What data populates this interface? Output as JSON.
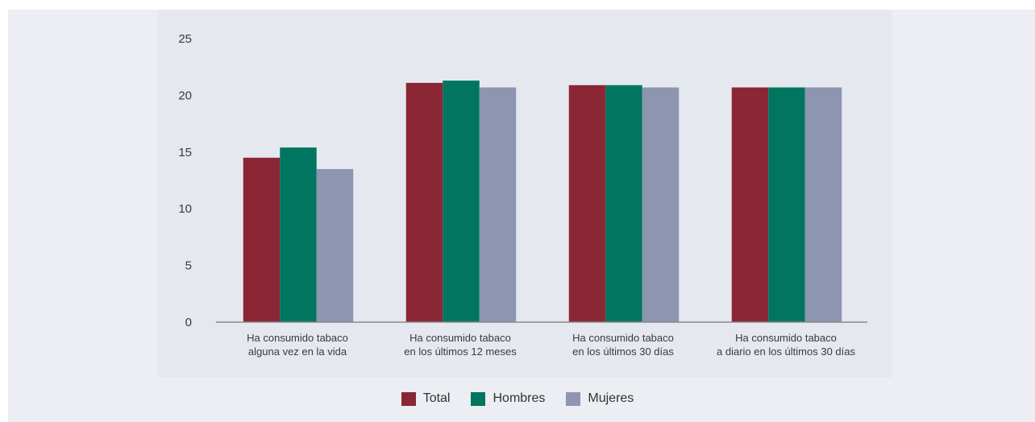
{
  "chart_data": {
    "type": "bar",
    "categories": [
      [
        "Ha consumido tabaco",
        "alguna vez en la vida"
      ],
      [
        "Ha consumido tabaco",
        "en los últimos 12 meses"
      ],
      [
        "Ha consumido tabaco",
        "en los últimos 30 días"
      ],
      [
        "Ha consumido tabaco",
        "a diario en los últimos 30 días"
      ]
    ],
    "series": [
      {
        "name": "Total",
        "color": "#8b2634",
        "values": [
          14.5,
          21.1,
          20.9,
          20.7
        ]
      },
      {
        "name": "Hombres",
        "color": "#00755f",
        "values": [
          15.4,
          21.3,
          20.9,
          20.7
        ]
      },
      {
        "name": "Mujeres",
        "color": "#8d95b0",
        "values": [
          13.5,
          20.7,
          20.7,
          20.7
        ]
      }
    ],
    "ylim": [
      0,
      25
    ],
    "yticks": [
      "0",
      "5",
      "10",
      "15",
      "20",
      "25"
    ],
    "grid": false,
    "legend_position": "bottom",
    "title": "",
    "xlabel": "",
    "ylabel": ""
  },
  "legend": {
    "items": [
      {
        "label": "Total",
        "color": "#8b2634"
      },
      {
        "label": "Hombres",
        "color": "#00755f"
      },
      {
        "label": "Mujeres",
        "color": "#8d95b0"
      }
    ]
  }
}
